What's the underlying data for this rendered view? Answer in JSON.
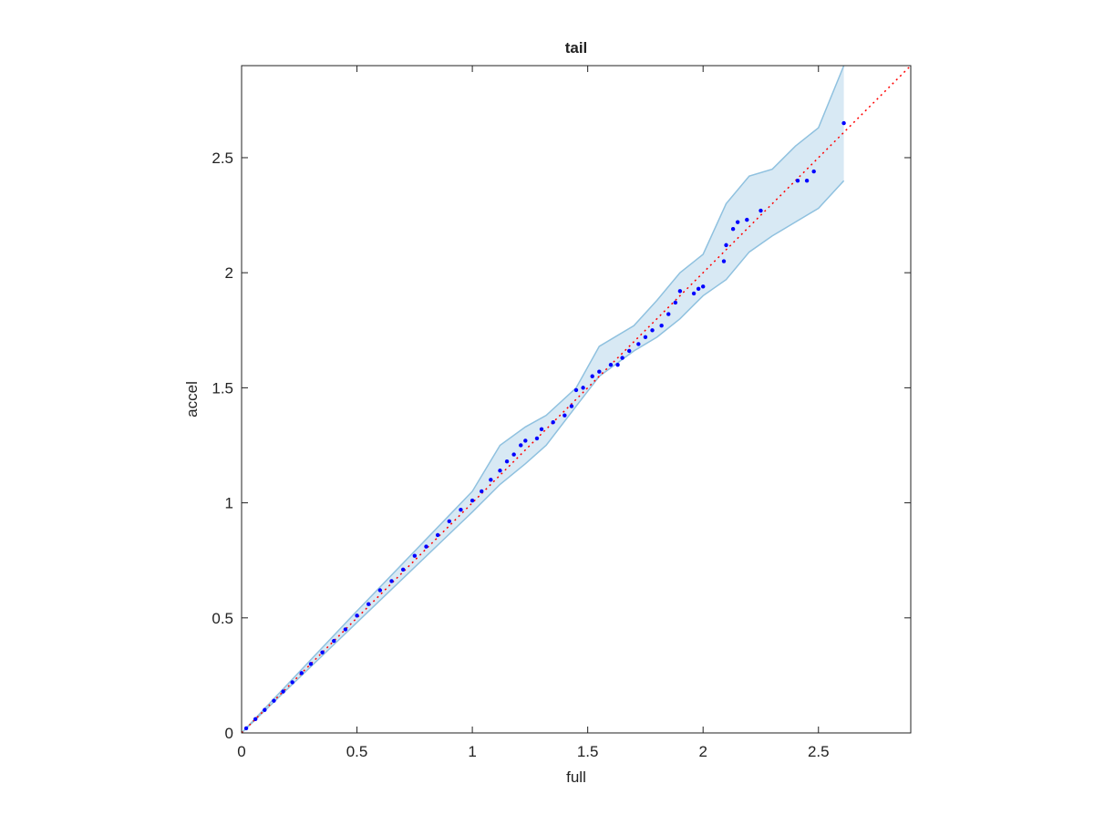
{
  "chart_data": {
    "type": "scatter",
    "title": "tail",
    "x_label": "full",
    "y_label": "accel",
    "xlim": [
      0,
      2.9
    ],
    "ylim": [
      0,
      2.9
    ],
    "xticks": [
      0,
      0.5,
      1,
      1.5,
      2,
      2.5
    ],
    "yticks": [
      0,
      0.5,
      1,
      1.5,
      2,
      2.5
    ],
    "grid": false,
    "series": [
      {
        "color": "#0000ff",
        "x": [
          0.02,
          0.06,
          0.1,
          0.14,
          0.18,
          0.22,
          0.26,
          0.3,
          0.35,
          0.4,
          0.45,
          0.5,
          0.55,
          0.6,
          0.65,
          0.7,
          0.75,
          0.8,
          0.85,
          0.9,
          0.95,
          1.0,
          1.04,
          1.08,
          1.12,
          1.15,
          1.18,
          1.21,
          1.23,
          1.28,
          1.3,
          1.35,
          1.4,
          1.43,
          1.45,
          1.48,
          1.52,
          1.55,
          1.6,
          1.63,
          1.65,
          1.68,
          1.72,
          1.75,
          1.78,
          1.82,
          1.85,
          1.88,
          1.9,
          1.96,
          1.98,
          2.0,
          2.09,
          2.1,
          2.13,
          2.15,
          2.19,
          2.25,
          2.41,
          2.45,
          2.48,
          2.61
        ],
        "y": [
          0.02,
          0.06,
          0.1,
          0.14,
          0.18,
          0.22,
          0.26,
          0.3,
          0.35,
          0.4,
          0.45,
          0.51,
          0.56,
          0.62,
          0.66,
          0.71,
          0.77,
          0.81,
          0.86,
          0.92,
          0.97,
          1.01,
          1.05,
          1.1,
          1.14,
          1.18,
          1.21,
          1.25,
          1.27,
          1.28,
          1.32,
          1.35,
          1.38,
          1.42,
          1.49,
          1.5,
          1.55,
          1.57,
          1.6,
          1.6,
          1.63,
          1.66,
          1.69,
          1.72,
          1.75,
          1.77,
          1.82,
          1.87,
          1.92,
          1.91,
          1.93,
          1.94,
          2.05,
          2.12,
          2.19,
          2.22,
          2.23,
          2.27,
          2.4,
          2.4,
          2.44,
          2.65
        ]
      }
    ],
    "band": {
      "color": "#8fc1df",
      "x": [
        0,
        0.5,
        1.0,
        1.12,
        1.23,
        1.32,
        1.45,
        1.55,
        1.7,
        1.8,
        1.9,
        2.0,
        2.1,
        2.2,
        2.3,
        2.4,
        2.5,
        2.61
      ],
      "upper": [
        0,
        0.53,
        1.05,
        1.25,
        1.33,
        1.38,
        1.5,
        1.68,
        1.77,
        1.88,
        2.0,
        2.08,
        2.3,
        2.42,
        2.45,
        2.55,
        2.63,
        2.9
      ],
      "lower": [
        0,
        0.48,
        0.96,
        1.08,
        1.17,
        1.25,
        1.42,
        1.55,
        1.66,
        1.72,
        1.8,
        1.9,
        1.97,
        2.09,
        2.16,
        2.22,
        2.28,
        2.4
      ]
    },
    "reference": {
      "color": "#ff0000",
      "x": [
        0,
        2.9
      ],
      "y": [
        0,
        2.9
      ]
    }
  }
}
